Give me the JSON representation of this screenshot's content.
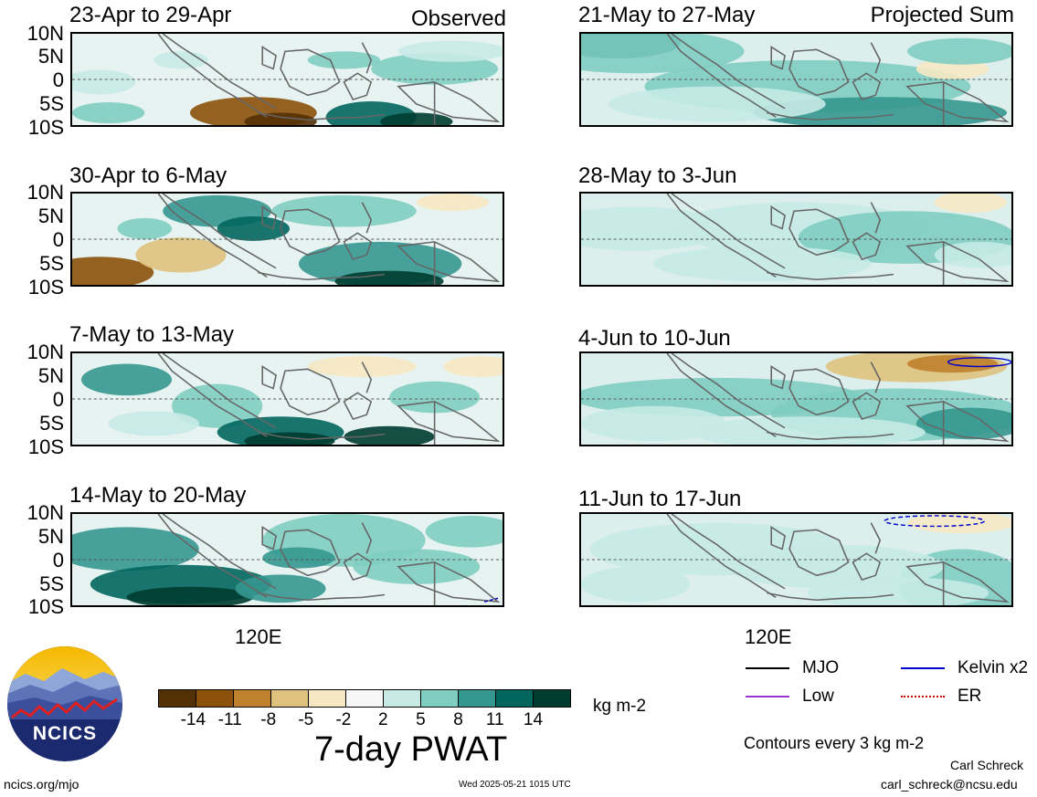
{
  "header": {
    "left_label": "Observed",
    "right_label": "Projected Sum"
  },
  "panels_left": [
    {
      "period": "23-Apr to 29-Apr"
    },
    {
      "period": "30-Apr to 6-May"
    },
    {
      "period": "7-May to 13-May"
    },
    {
      "period": "14-May to 20-May"
    }
  ],
  "panels_right": [
    {
      "period": "21-May to 27-May"
    },
    {
      "period": "28-May to 3-Jun"
    },
    {
      "period": "4-Jun to 10-Jun"
    },
    {
      "period": "11-Jun to 17-Jun"
    }
  ],
  "lat_labels": [
    "10N",
    "5N",
    "0",
    "5S",
    "10S"
  ],
  "lon_label": "120E",
  "colorbar": {
    "ticks": [
      "-14",
      "-11",
      "-8",
      "-5",
      "-2",
      "2",
      "5",
      "8",
      "11",
      "14"
    ],
    "colors": [
      "#543005",
      "#8c510a",
      "#bf812d",
      "#dfc27d",
      "#f6e8c3",
      "#f7f7f7",
      "#c7eae5",
      "#80cdc1",
      "#35978f",
      "#01665e",
      "#003c30"
    ],
    "units": "kg m-2",
    "title": "7-day PWAT"
  },
  "legend": {
    "mjo": "MJO",
    "kelvin": "Kelvin x2",
    "low": "Low",
    "er": "ER",
    "mjo_color": "#000000",
    "kelvin_color": "#0000cc",
    "low_color": "#9933cc",
    "er_color": "#cc0000",
    "contours_note": "Contours every 3 kg m-2"
  },
  "credits": {
    "logo_text": "NCICS",
    "site": "ncics.org/mjo",
    "timestamp": "Wed 2025-05-21 1015 UTC",
    "author": "Carl Schreck",
    "email": "carl_schreck@ncsu.edu"
  }
}
